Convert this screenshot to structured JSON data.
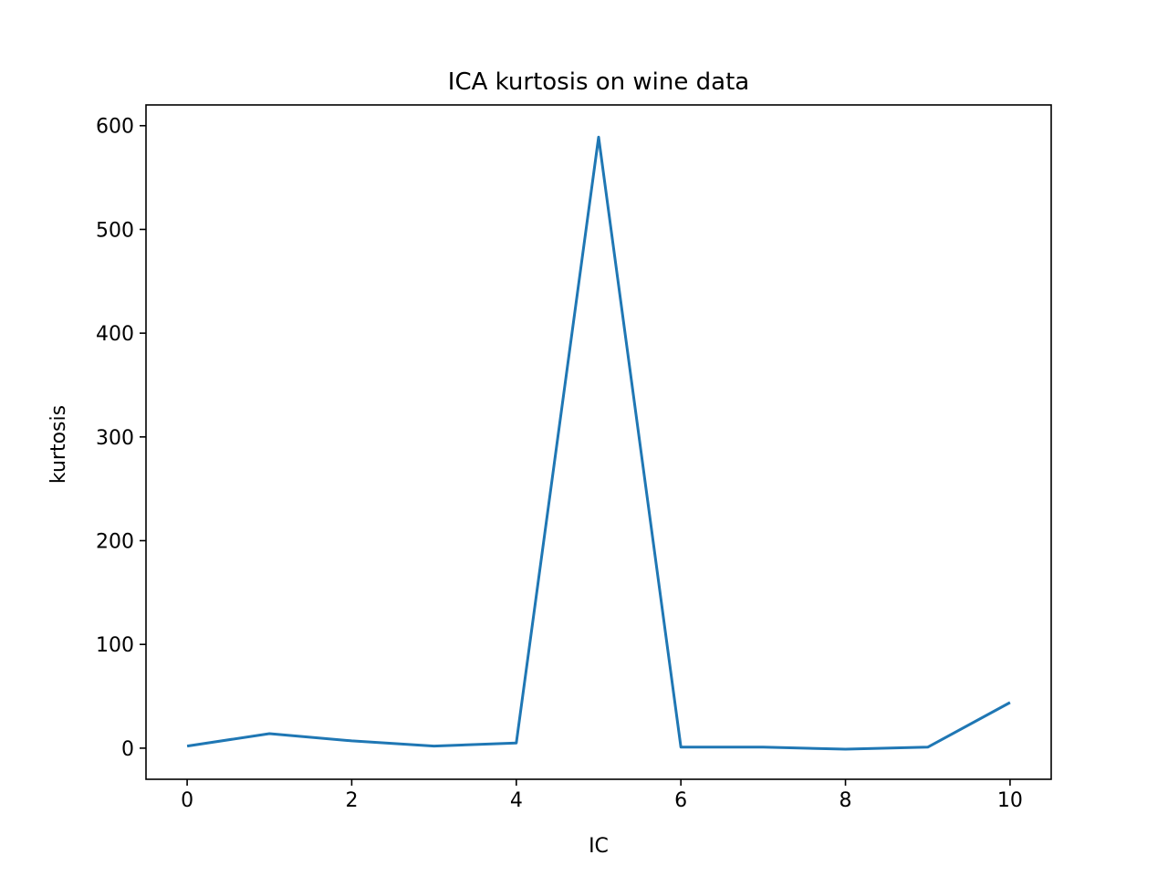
{
  "chart_data": {
    "type": "line",
    "title": "ICA kurtosis on wine data",
    "xlabel": "IC",
    "ylabel": "kurtosis",
    "xlim": [
      -0.5,
      10.5
    ],
    "ylim": [
      -30,
      620
    ],
    "x_ticks": [
      0,
      2,
      4,
      6,
      8,
      10
    ],
    "y_ticks": [
      0,
      100,
      200,
      300,
      400,
      500,
      600
    ],
    "grid": false,
    "legend": "none",
    "series": [
      {
        "color": "#1f77b4",
        "x": [
          0,
          1,
          2,
          3,
          4,
          5,
          6,
          7,
          8,
          9,
          10
        ],
        "y": [
          2,
          14,
          7,
          2,
          5,
          589,
          1,
          1,
          -1,
          1,
          44
        ]
      }
    ]
  }
}
